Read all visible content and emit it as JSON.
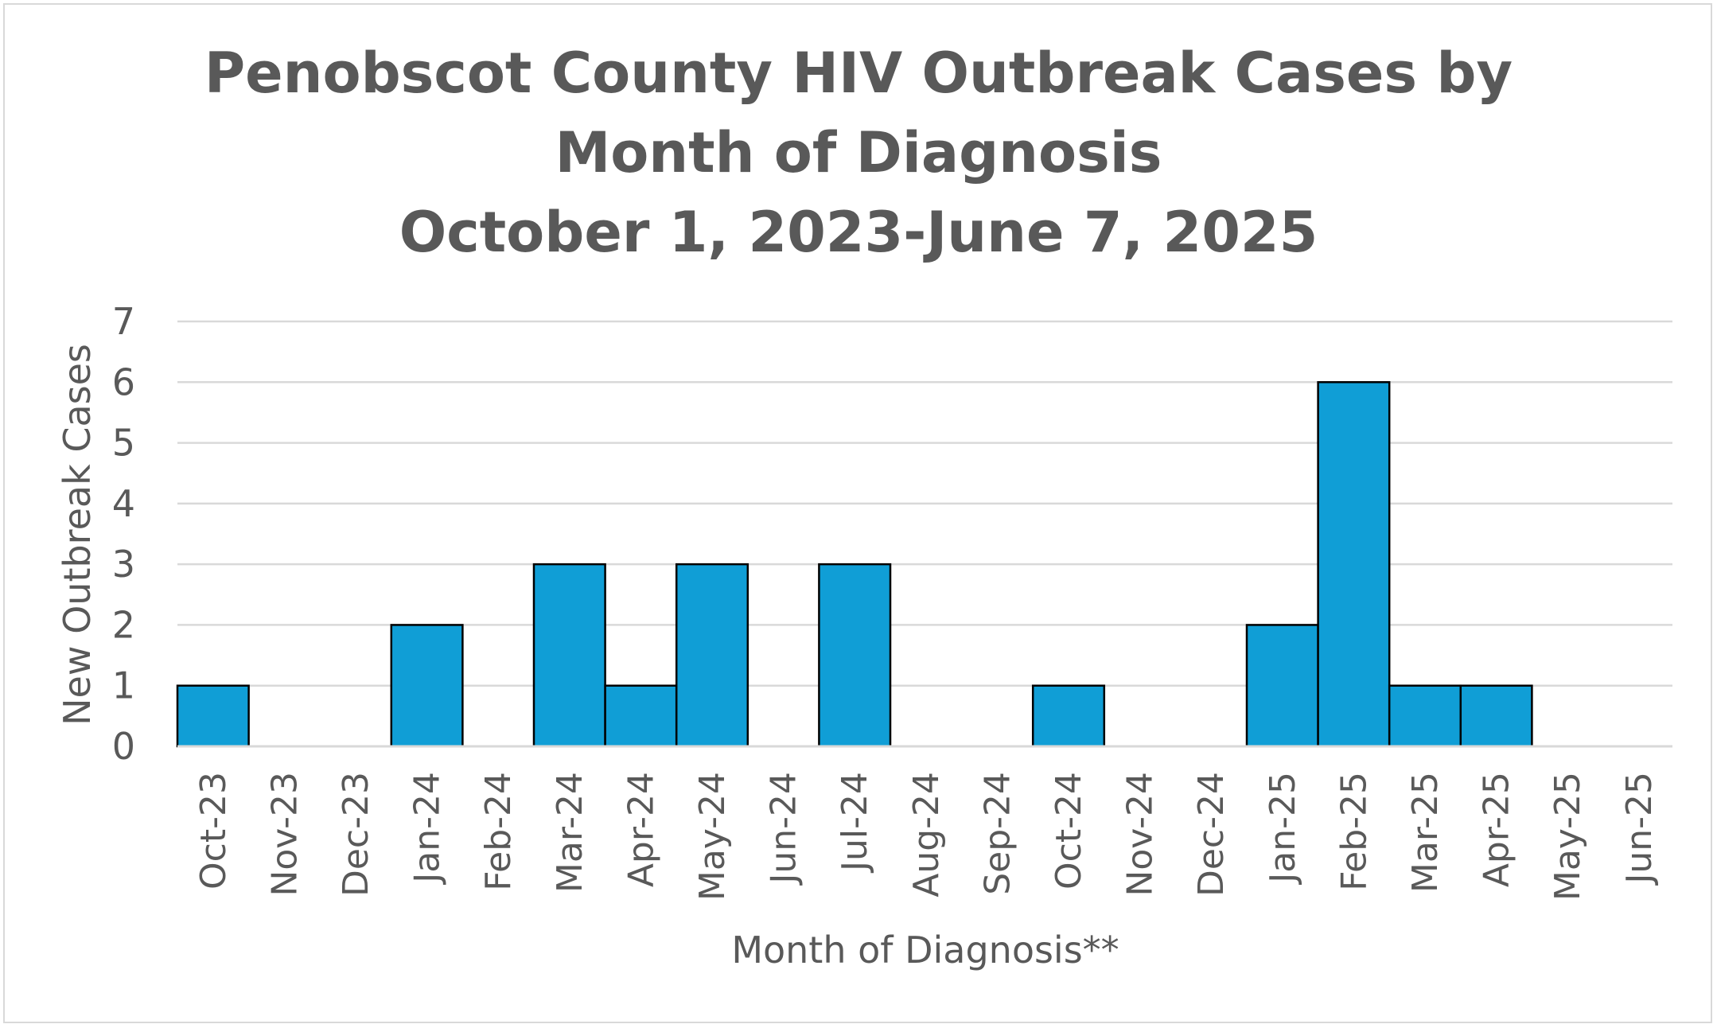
{
  "chart_data": {
    "type": "bar",
    "title_lines": [
      "Penobscot County HIV Outbreak Cases by",
      "Month of Diagnosis",
      "October 1, 2023-June 7, 2025"
    ],
    "xlabel": "Month of Diagnosis**",
    "ylabel": "New Outbreak Cases",
    "ylim": [
      0,
      7
    ],
    "yticks": [
      0,
      1,
      2,
      3,
      4,
      5,
      6,
      7
    ],
    "grid": true,
    "categories": [
      "Oct-23",
      "Nov-23",
      "Dec-23",
      "Jan-24",
      "Feb-24",
      "Mar-24",
      "Apr-24",
      "May-24",
      "Jun-24",
      "Jul-24",
      "Aug-24",
      "Sep-24",
      "Oct-24",
      "Nov-24",
      "Dec-24",
      "Jan-25",
      "Feb-25",
      "Mar-25",
      "Apr-25",
      "May-25",
      "Jun-25"
    ],
    "values": [
      1,
      0,
      0,
      2,
      0,
      3,
      1,
      3,
      0,
      3,
      0,
      0,
      1,
      0,
      0,
      2,
      6,
      1,
      1,
      0,
      0
    ],
    "bar_color": "#109ed6",
    "bar_edge_color": "#000000",
    "gridline_color": "#d9d9d9"
  }
}
